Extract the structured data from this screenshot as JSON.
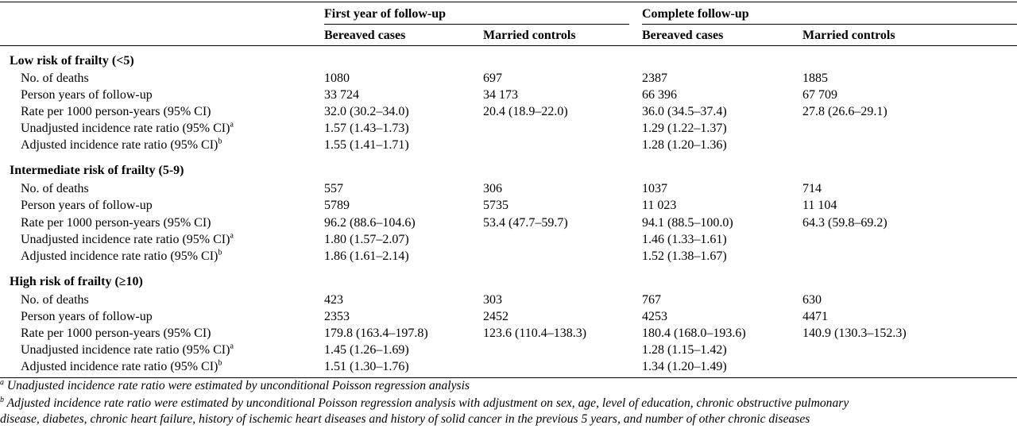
{
  "header": {
    "group_first_year": "First year of follow-up",
    "group_complete": "Complete follow-up",
    "col_bereaved_1": "Bereaved cases",
    "col_married_1": "Married controls",
    "col_bereaved_2": "Bereaved cases",
    "col_married_2": "Married controls"
  },
  "sections": [
    {
      "title": "Low risk of frailty (<5)",
      "rows": [
        {
          "label": "No. of deaths",
          "sup": "",
          "v1": "1080",
          "v2": "697",
          "v3": "2387",
          "v4": "1885"
        },
        {
          "label": "Person years of follow-up",
          "sup": "",
          "v1": "33 724",
          "v2": "34 173",
          "v3": "66 396",
          "v4": "67 709"
        },
        {
          "label": "Rate per 1000 person-years (95% CI)",
          "sup": "",
          "v1": "32.0 (30.2–34.0)",
          "v2": "20.4 (18.9–22.0)",
          "v3": "36.0 (34.5–37.4)",
          "v4": "27.8 (26.6–29.1)"
        },
        {
          "label": "Unadjusted incidence rate ratio (95% CI)",
          "sup": "a",
          "v1": "1.57 (1.43–1.73)",
          "v2": "",
          "v3": "1.29 (1.22–1.37)",
          "v4": ""
        },
        {
          "label": "Adjusted incidence rate ratio (95% CI)",
          "sup": "b",
          "v1": "1.55 (1.41–1.71)",
          "v2": "",
          "v3": "1.28 (1.20–1.36)",
          "v4": ""
        }
      ]
    },
    {
      "title": "Intermediate risk of frailty (5-9)",
      "rows": [
        {
          "label": "No. of deaths",
          "sup": "",
          "v1": "557",
          "v2": "306",
          "v3": "1037",
          "v4": "714"
        },
        {
          "label": "Person years of follow-up",
          "sup": "",
          "v1": "5789",
          "v2": "5735",
          "v3": "11 023",
          "v4": "11 104"
        },
        {
          "label": "Rate per 1000 person-years (95% CI)",
          "sup": "",
          "v1": "96.2 (88.6–104.6)",
          "v2": "53.4 (47.7–59.7)",
          "v3": "94.1 (88.5–100.0)",
          "v4": "64.3 (59.8–69.2)"
        },
        {
          "label": "Unadjusted incidence rate ratio (95% CI)",
          "sup": "a",
          "v1": "1.80 (1.57–2.07)",
          "v2": "",
          "v3": "1.46 (1.33–1.61)",
          "v4": ""
        },
        {
          "label": "Adjusted incidence rate ratio (95% CI)",
          "sup": "b",
          "v1": "1.86 (1.61–2.14)",
          "v2": "",
          "v3": "1.52 (1.38–1.67)",
          "v4": ""
        }
      ]
    },
    {
      "title": "High risk of frailty (≥10)",
      "rows": [
        {
          "label": "No. of deaths",
          "sup": "",
          "v1": "423",
          "v2": "303",
          "v3": "767",
          "v4": "630"
        },
        {
          "label": "Person years of follow-up",
          "sup": "",
          "v1": "2353",
          "v2": "2452",
          "v3": "4253",
          "v4": "4471"
        },
        {
          "label": "Rate per 1000 person-years (95% CI)",
          "sup": "",
          "v1": "179.8 (163.4–197.8)",
          "v2": "123.6 (110.4–138.3)",
          "v3": "180.4 (168.0–193.6)",
          "v4": "140.9 (130.3–152.3)"
        },
        {
          "label": "Unadjusted incidence rate ratio (95% CI)",
          "sup": "a",
          "v1": "1.45 (1.26–1.69)",
          "v2": "",
          "v3": "1.28 (1.15–1.42)",
          "v4": ""
        },
        {
          "label": "Adjusted incidence rate ratio (95% CI)",
          "sup": "b",
          "v1": "1.51 (1.30–1.76)",
          "v2": "",
          "v3": "1.34 (1.20–1.49)",
          "v4": ""
        }
      ]
    }
  ],
  "footnotes": {
    "a_marker": "a",
    "a_text": "Unadjusted incidence rate ratio were estimated by unconditional Poisson regression analysis",
    "b_marker": "b",
    "b_text_line1": "Adjusted incidence rate ratio were estimated by unconditional Poisson regression analysis with adjustment on sex, age, level of education, chronic obstructive pulmonary",
    "b_text_line2": "disease, diabetes, chronic heart failure, history of ischemic heart diseases and history of solid cancer in the previous 5 years, and number of other chronic diseases"
  }
}
